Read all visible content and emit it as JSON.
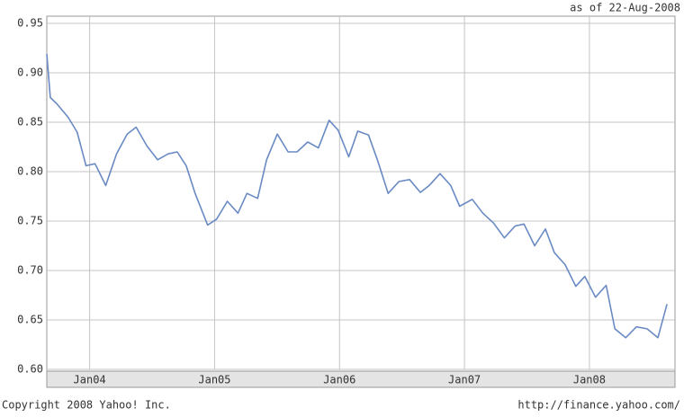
{
  "chart_data": {
    "type": "line",
    "note_top": "as of 22-Aug-2008",
    "footer_left": "Copyright 2008 Yahoo! Inc.",
    "footer_right": "http://finance.yahoo.com/",
    "x": [
      2003.657,
      2003.685,
      2003.742,
      2003.828,
      2003.9,
      2003.971,
      2004.043,
      2004.129,
      2004.215,
      2004.3,
      2004.372,
      2004.458,
      2004.544,
      2004.629,
      2004.701,
      2004.773,
      2004.844,
      2004.944,
      2005.016,
      2005.102,
      2005.187,
      2005.259,
      2005.345,
      2005.416,
      2005.502,
      2005.588,
      2005.66,
      2005.745,
      2005.831,
      2005.917,
      2005.989,
      2006.074,
      2006.146,
      2006.232,
      2006.303,
      2006.389,
      2006.475,
      2006.561,
      2006.647,
      2006.718,
      2006.804,
      2006.89,
      2006.961,
      2007.062,
      2007.147,
      2007.233,
      2007.319,
      2007.405,
      2007.476,
      2007.562,
      2007.648,
      2007.72,
      2007.805,
      2007.891,
      2007.963,
      2008.049,
      2008.134,
      2008.204,
      2008.29,
      2008.376,
      2008.462,
      2008.548,
      2008.621
    ],
    "series": [
      {
        "color": "#6a8ac4",
        "values": [
          0.919,
          0.875,
          0.868,
          0.855,
          0.84,
          0.806,
          0.808,
          0.786,
          0.818,
          0.838,
          0.845,
          0.826,
          0.812,
          0.818,
          0.82,
          0.806,
          0.778,
          0.746,
          0.752,
          0.77,
          0.758,
          0.778,
          0.773,
          0.812,
          0.838,
          0.82,
          0.82,
          0.83,
          0.824,
          0.852,
          0.842,
          0.815,
          0.841,
          0.837,
          0.812,
          0.778,
          0.79,
          0.792,
          0.779,
          0.786,
          0.798,
          0.786,
          0.765,
          0.772,
          0.758,
          0.748,
          0.733,
          0.745,
          0.747,
          0.725,
          0.742,
          0.718,
          0.706,
          0.684,
          0.694,
          0.673,
          0.685,
          0.641,
          0.632,
          0.643,
          0.641,
          0.632,
          0.666
        ]
      }
    ],
    "xlim": [
      2003.657,
      2008.685
    ],
    "xticks": [
      {
        "value": 2004,
        "label": "Jan04"
      },
      {
        "value": 2005,
        "label": "Jan05"
      },
      {
        "value": 2006,
        "label": "Jan06"
      },
      {
        "value": 2007,
        "label": "Jan07"
      },
      {
        "value": 2008,
        "label": "Jan08"
      }
    ],
    "ylim": [
      0.6,
      0.95
    ],
    "yticks": [
      {
        "value": 0.6,
        "label": "0.60"
      },
      {
        "value": 0.65,
        "label": "0.65"
      },
      {
        "value": 0.7,
        "label": "0.70"
      },
      {
        "value": 0.75,
        "label": "0.75"
      },
      {
        "value": 0.8,
        "label": "0.80"
      },
      {
        "value": 0.85,
        "label": "0.85"
      },
      {
        "value": 0.9,
        "label": "0.90"
      },
      {
        "value": 0.95,
        "label": "0.95"
      }
    ],
    "grid": true
  }
}
